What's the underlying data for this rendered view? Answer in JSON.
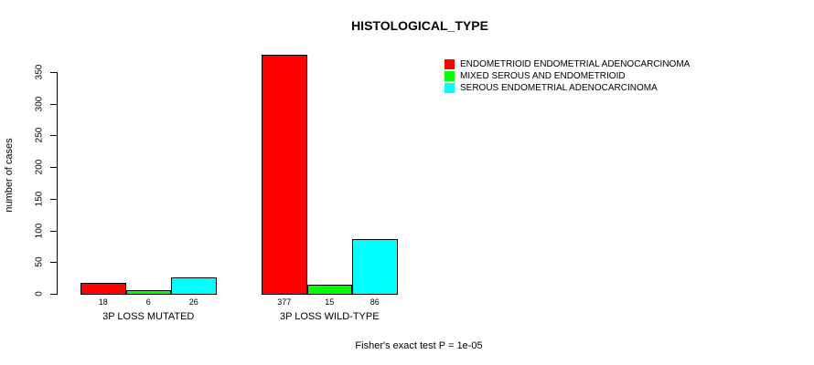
{
  "figure": {
    "title": "HISTOLOGICAL_TYPE",
    "caption": "Fisher's exact test P = 1e-05"
  },
  "chart_data": {
    "type": "bar",
    "title": "HISTOLOGICAL_TYPE",
    "xlabel": "",
    "ylabel": "number of cases",
    "categories": [
      "3P LOSS MUTATED",
      "3P LOSS WILD-TYPE"
    ],
    "series": [
      {
        "name": "ENDOMETRIOID ENDOMETRIAL ADENOCARCINOMA",
        "color": "#FF0000",
        "values": [
          18,
          377
        ]
      },
      {
        "name": "MIXED SEROUS AND ENDOMETRIOID",
        "color": "#00FF00",
        "values": [
          6,
          15
        ]
      },
      {
        "name": "SEROUS ENDOMETRIAL ADENOCARCINOMA",
        "color": "#00FFFF",
        "values": [
          26,
          86
        ]
      }
    ],
    "yticks": [
      0,
      50,
      100,
      150,
      200,
      250,
      300,
      350
    ],
    "ylim": [
      0,
      377
    ],
    "bar_value_labels_shown": true,
    "grid": false,
    "legend_position": "top-right",
    "annotation": "Fisher's exact test P = 1e-05"
  }
}
